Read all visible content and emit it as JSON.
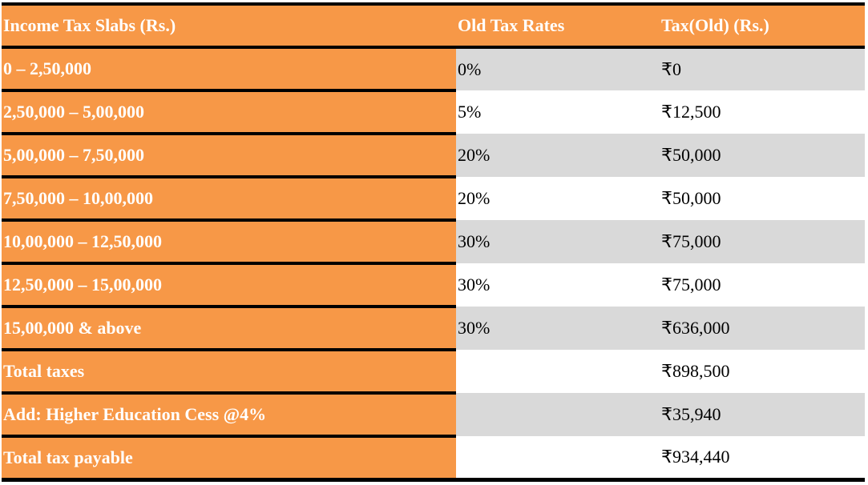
{
  "header": {
    "col1": "Income Tax Slabs (Rs.)",
    "col2": "Old Tax Rates",
    "col3": "Tax(Old) (Rs.)"
  },
  "rows": [
    {
      "slab": "0 – 2,50,000",
      "rate": "0%",
      "tax": "₹0"
    },
    {
      "slab": "2,50,000 – 5,00,000",
      "rate": "5%",
      "tax": "₹12,500"
    },
    {
      "slab": "5,00,000 – 7,50,000",
      "rate": "20%",
      "tax": "₹50,000"
    },
    {
      "slab": "7,50,000 – 10,00,000",
      "rate": "20%",
      "tax": "₹50,000"
    },
    {
      "slab": "10,00,000 – 12,50,000",
      "rate": "30%",
      "tax": "₹75,000"
    },
    {
      "slab": "12,50,000 – 15,00,000",
      "rate": "30%",
      "tax": "₹75,000"
    },
    {
      "slab": "15,00,000 & above",
      "rate": "30%",
      "tax": "₹636,000"
    },
    {
      "slab": "Total taxes",
      "rate": "",
      "tax": "₹898,500"
    },
    {
      "slab": "Add: Higher Education Cess @4%",
      "rate": "",
      "tax": "₹35,940"
    },
    {
      "slab": "Total tax payable",
      "rate": "",
      "tax": "₹934,440"
    }
  ]
}
